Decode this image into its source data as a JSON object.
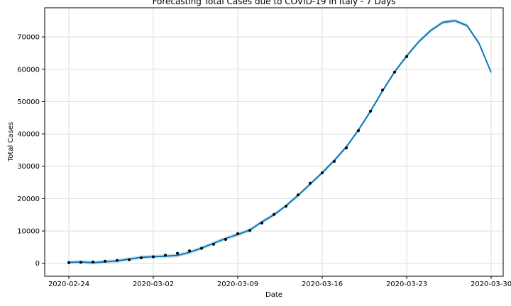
{
  "chart_data": {
    "type": "line",
    "title": "Forecasting Total Cases due to COVID-19 in Italy - 7 Days",
    "xlabel": "Date",
    "ylabel": "Total Cases",
    "x_ticks": [
      "2020-02-24",
      "2020-03-02",
      "2020-03-09",
      "2020-03-16",
      "2020-03-23",
      "2020-03-30"
    ],
    "y_ticks": [
      0,
      10000,
      20000,
      30000,
      40000,
      50000,
      60000,
      70000
    ],
    "xlim": [
      "2020-02-22",
      "2020-03-31"
    ],
    "ylim": [
      -4000,
      79000
    ],
    "grid": true,
    "colors": {
      "forecast": "#0072B2",
      "band": "#9ecae1",
      "observed": "#000000"
    },
    "observed": [
      {
        "x": "2020-02-24",
        "y": 229
      },
      {
        "x": "2020-02-25",
        "y": 322
      },
      {
        "x": "2020-02-26",
        "y": 400
      },
      {
        "x": "2020-02-27",
        "y": 650
      },
      {
        "x": "2020-02-28",
        "y": 888
      },
      {
        "x": "2020-02-29",
        "y": 1128
      },
      {
        "x": "2020-03-01",
        "y": 1694
      },
      {
        "x": "2020-03-02",
        "y": 2036
      },
      {
        "x": "2020-03-03",
        "y": 2502
      },
      {
        "x": "2020-03-04",
        "y": 3089
      },
      {
        "x": "2020-03-05",
        "y": 3858
      },
      {
        "x": "2020-03-06",
        "y": 4636
      },
      {
        "x": "2020-03-07",
        "y": 5883
      },
      {
        "x": "2020-03-08",
        "y": 7375
      },
      {
        "x": "2020-03-09",
        "y": 9172
      },
      {
        "x": "2020-03-10",
        "y": 10149
      },
      {
        "x": "2020-03-11",
        "y": 12462
      },
      {
        "x": "2020-03-12",
        "y": 15113
      },
      {
        "x": "2020-03-13",
        "y": 17660
      },
      {
        "x": "2020-03-14",
        "y": 21157
      },
      {
        "x": "2020-03-15",
        "y": 24747
      },
      {
        "x": "2020-03-16",
        "y": 27980
      },
      {
        "x": "2020-03-17",
        "y": 31506
      },
      {
        "x": "2020-03-18",
        "y": 35713
      },
      {
        "x": "2020-03-19",
        "y": 41035
      },
      {
        "x": "2020-03-20",
        "y": 47021
      },
      {
        "x": "2020-03-21",
        "y": 53578
      },
      {
        "x": "2020-03-22",
        "y": 59138
      },
      {
        "x": "2020-03-23",
        "y": 63927
      }
    ],
    "forecast": [
      {
        "x": "2020-02-24",
        "y": 300
      },
      {
        "x": "2020-02-25",
        "y": 400
      },
      {
        "x": "2020-02-26",
        "y": 200
      },
      {
        "x": "2020-02-27",
        "y": 450
      },
      {
        "x": "2020-02-28",
        "y": 750
      },
      {
        "x": "2020-02-29",
        "y": 1300
      },
      {
        "x": "2020-03-01",
        "y": 1850
      },
      {
        "x": "2020-03-02",
        "y": 2050
      },
      {
        "x": "2020-03-03",
        "y": 2200
      },
      {
        "x": "2020-03-04",
        "y": 2450
      },
      {
        "x": "2020-03-05",
        "y": 3400
      },
      {
        "x": "2020-03-06",
        "y": 4700
      },
      {
        "x": "2020-03-07",
        "y": 6200
      },
      {
        "x": "2020-03-08",
        "y": 7700
      },
      {
        "x": "2020-03-09",
        "y": 8900
      },
      {
        "x": "2020-03-10",
        "y": 10300
      },
      {
        "x": "2020-03-11",
        "y": 12800
      },
      {
        "x": "2020-03-12",
        "y": 15000
      },
      {
        "x": "2020-03-13",
        "y": 17800
      },
      {
        "x": "2020-03-14",
        "y": 21000
      },
      {
        "x": "2020-03-15",
        "y": 24500
      },
      {
        "x": "2020-03-16",
        "y": 28000
      },
      {
        "x": "2020-03-17",
        "y": 31800
      },
      {
        "x": "2020-03-18",
        "y": 36000
      },
      {
        "x": "2020-03-19",
        "y": 41200
      },
      {
        "x": "2020-03-20",
        "y": 47000
      },
      {
        "x": "2020-03-21",
        "y": 53300
      },
      {
        "x": "2020-03-22",
        "y": 59200
      },
      {
        "x": "2020-03-23",
        "y": 64100
      },
      {
        "x": "2020-03-24",
        "y": 68500
      },
      {
        "x": "2020-03-25",
        "y": 72000
      },
      {
        "x": "2020-03-26",
        "y": 74500
      },
      {
        "x": "2020-03-27",
        "y": 75000
      },
      {
        "x": "2020-03-28",
        "y": 73500
      },
      {
        "x": "2020-03-29",
        "y": 68000
      },
      {
        "x": "2020-03-30",
        "y": 59000
      }
    ],
    "band_width": 600
  }
}
